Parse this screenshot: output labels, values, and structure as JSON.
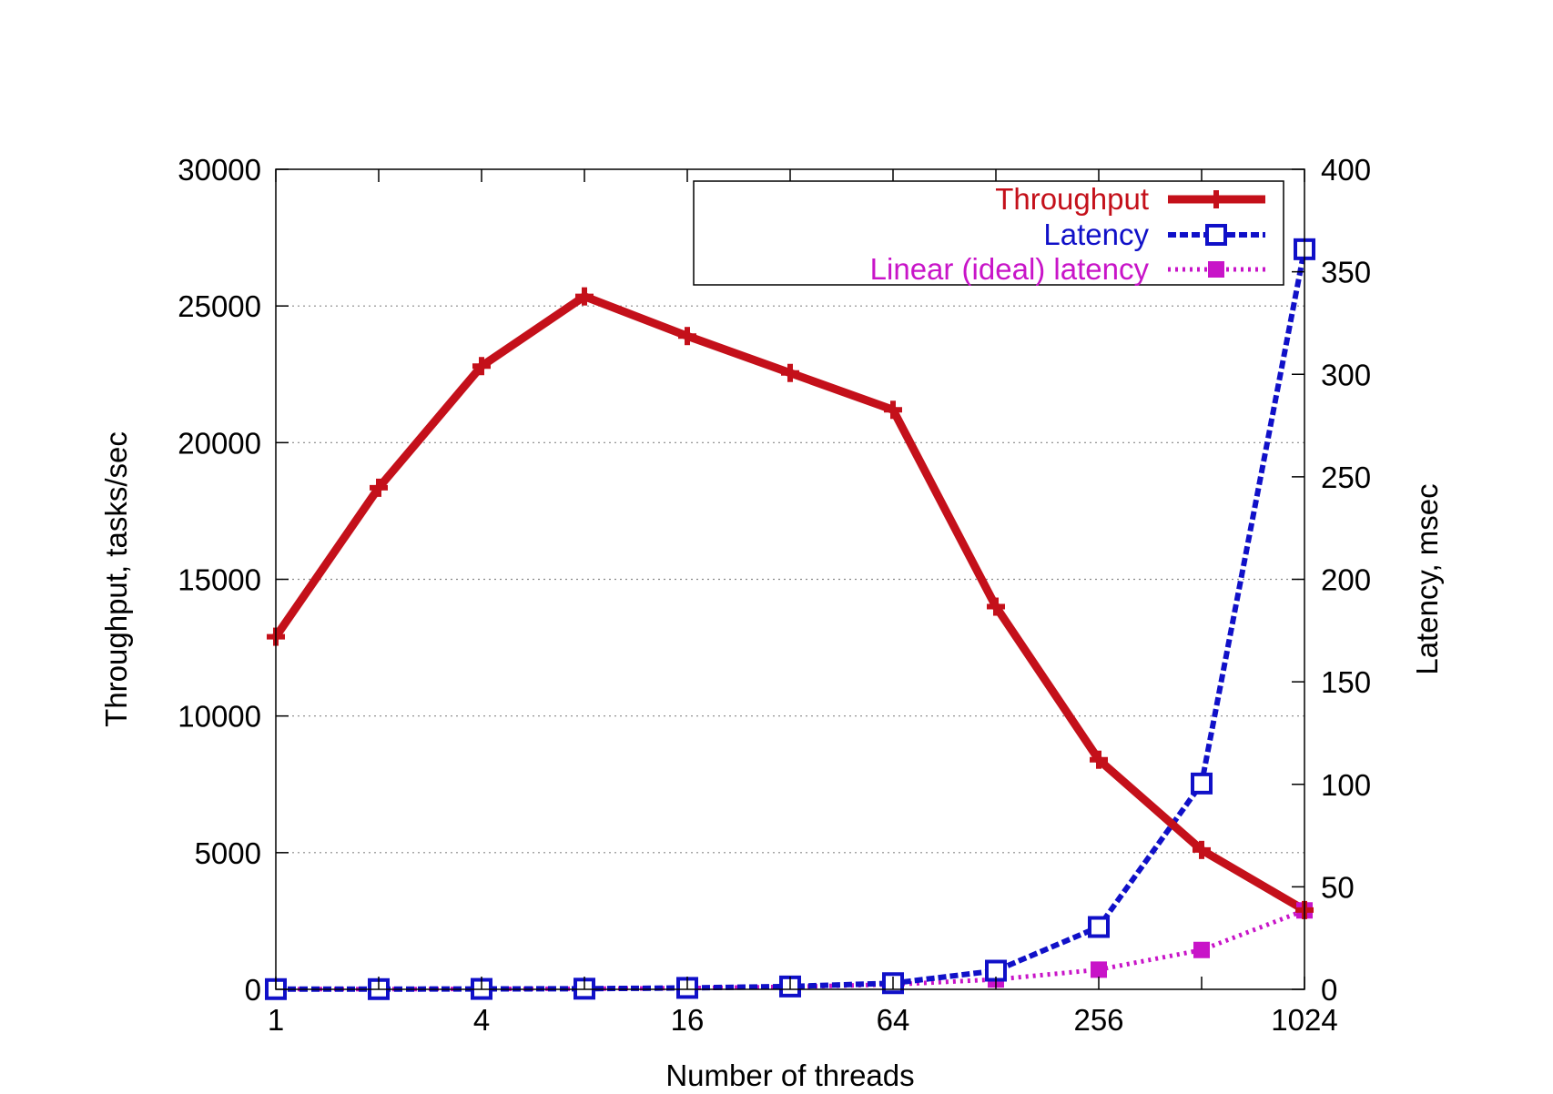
{
  "chart_data": {
    "type": "line",
    "xlabel": "Number of threads",
    "ylabel": "Throughput, tasks/sec",
    "y2label": "Latency, msec",
    "x_scale": "log2",
    "xlim": [
      1,
      1024
    ],
    "ylim": [
      0,
      30000
    ],
    "y2lim": [
      0,
      400
    ],
    "x_ticks": [
      {
        "value": 1,
        "label": "1"
      },
      {
        "value": 4,
        "label": "4"
      },
      {
        "value": 16,
        "label": "16"
      },
      {
        "value": 64,
        "label": "64"
      },
      {
        "value": 256,
        "label": "256"
      },
      {
        "value": 1024,
        "label": "1024"
      }
    ],
    "y_ticks": [
      {
        "value": 0,
        "label": "0"
      },
      {
        "value": 5000,
        "label": "5000"
      },
      {
        "value": 10000,
        "label": "10000"
      },
      {
        "value": 15000,
        "label": "15000"
      },
      {
        "value": 20000,
        "label": "20000"
      },
      {
        "value": 25000,
        "label": "25000"
      },
      {
        "value": 30000,
        "label": "30000"
      }
    ],
    "y2_ticks": [
      {
        "value": 0,
        "label": "0"
      },
      {
        "value": 50,
        "label": "50"
      },
      {
        "value": 100,
        "label": "100"
      },
      {
        "value": 150,
        "label": "150"
      },
      {
        "value": 200,
        "label": "200"
      },
      {
        "value": 250,
        "label": "250"
      },
      {
        "value": 300,
        "label": "300"
      },
      {
        "value": 350,
        "label": "350"
      },
      {
        "value": 400,
        "label": "400"
      }
    ],
    "grid": "horizontal dotted",
    "legend_position": "top-right",
    "x": [
      1,
      2,
      4,
      8,
      16,
      32,
      64,
      128,
      256,
      512,
      1024
    ],
    "series": [
      {
        "name": "Throughput",
        "axis": "left",
        "color": "#c4101a",
        "style": "solid",
        "marker": "plus",
        "values": [
          12900,
          18350,
          22800,
          25350,
          23900,
          22550,
          21200,
          14000,
          8400,
          5100,
          2900
        ]
      },
      {
        "name": "Latency",
        "axis": "right",
        "color": "#1010c8",
        "style": "dashed",
        "marker": "open-square",
        "values": [
          0.1,
          0.1,
          0.2,
          0.3,
          0.7,
          1.4,
          3.0,
          9.1,
          30.4,
          100.4,
          361
        ]
      },
      {
        "name": "Linear (ideal) latency",
        "axis": "right",
        "color": "#c814c8",
        "style": "dotted",
        "marker": "filled-square",
        "values": [
          0.1,
          0.1,
          0.2,
          0.3,
          0.6,
          1.2,
          2.4,
          4.8,
          9.6,
          19.2,
          38.5
        ]
      }
    ]
  }
}
